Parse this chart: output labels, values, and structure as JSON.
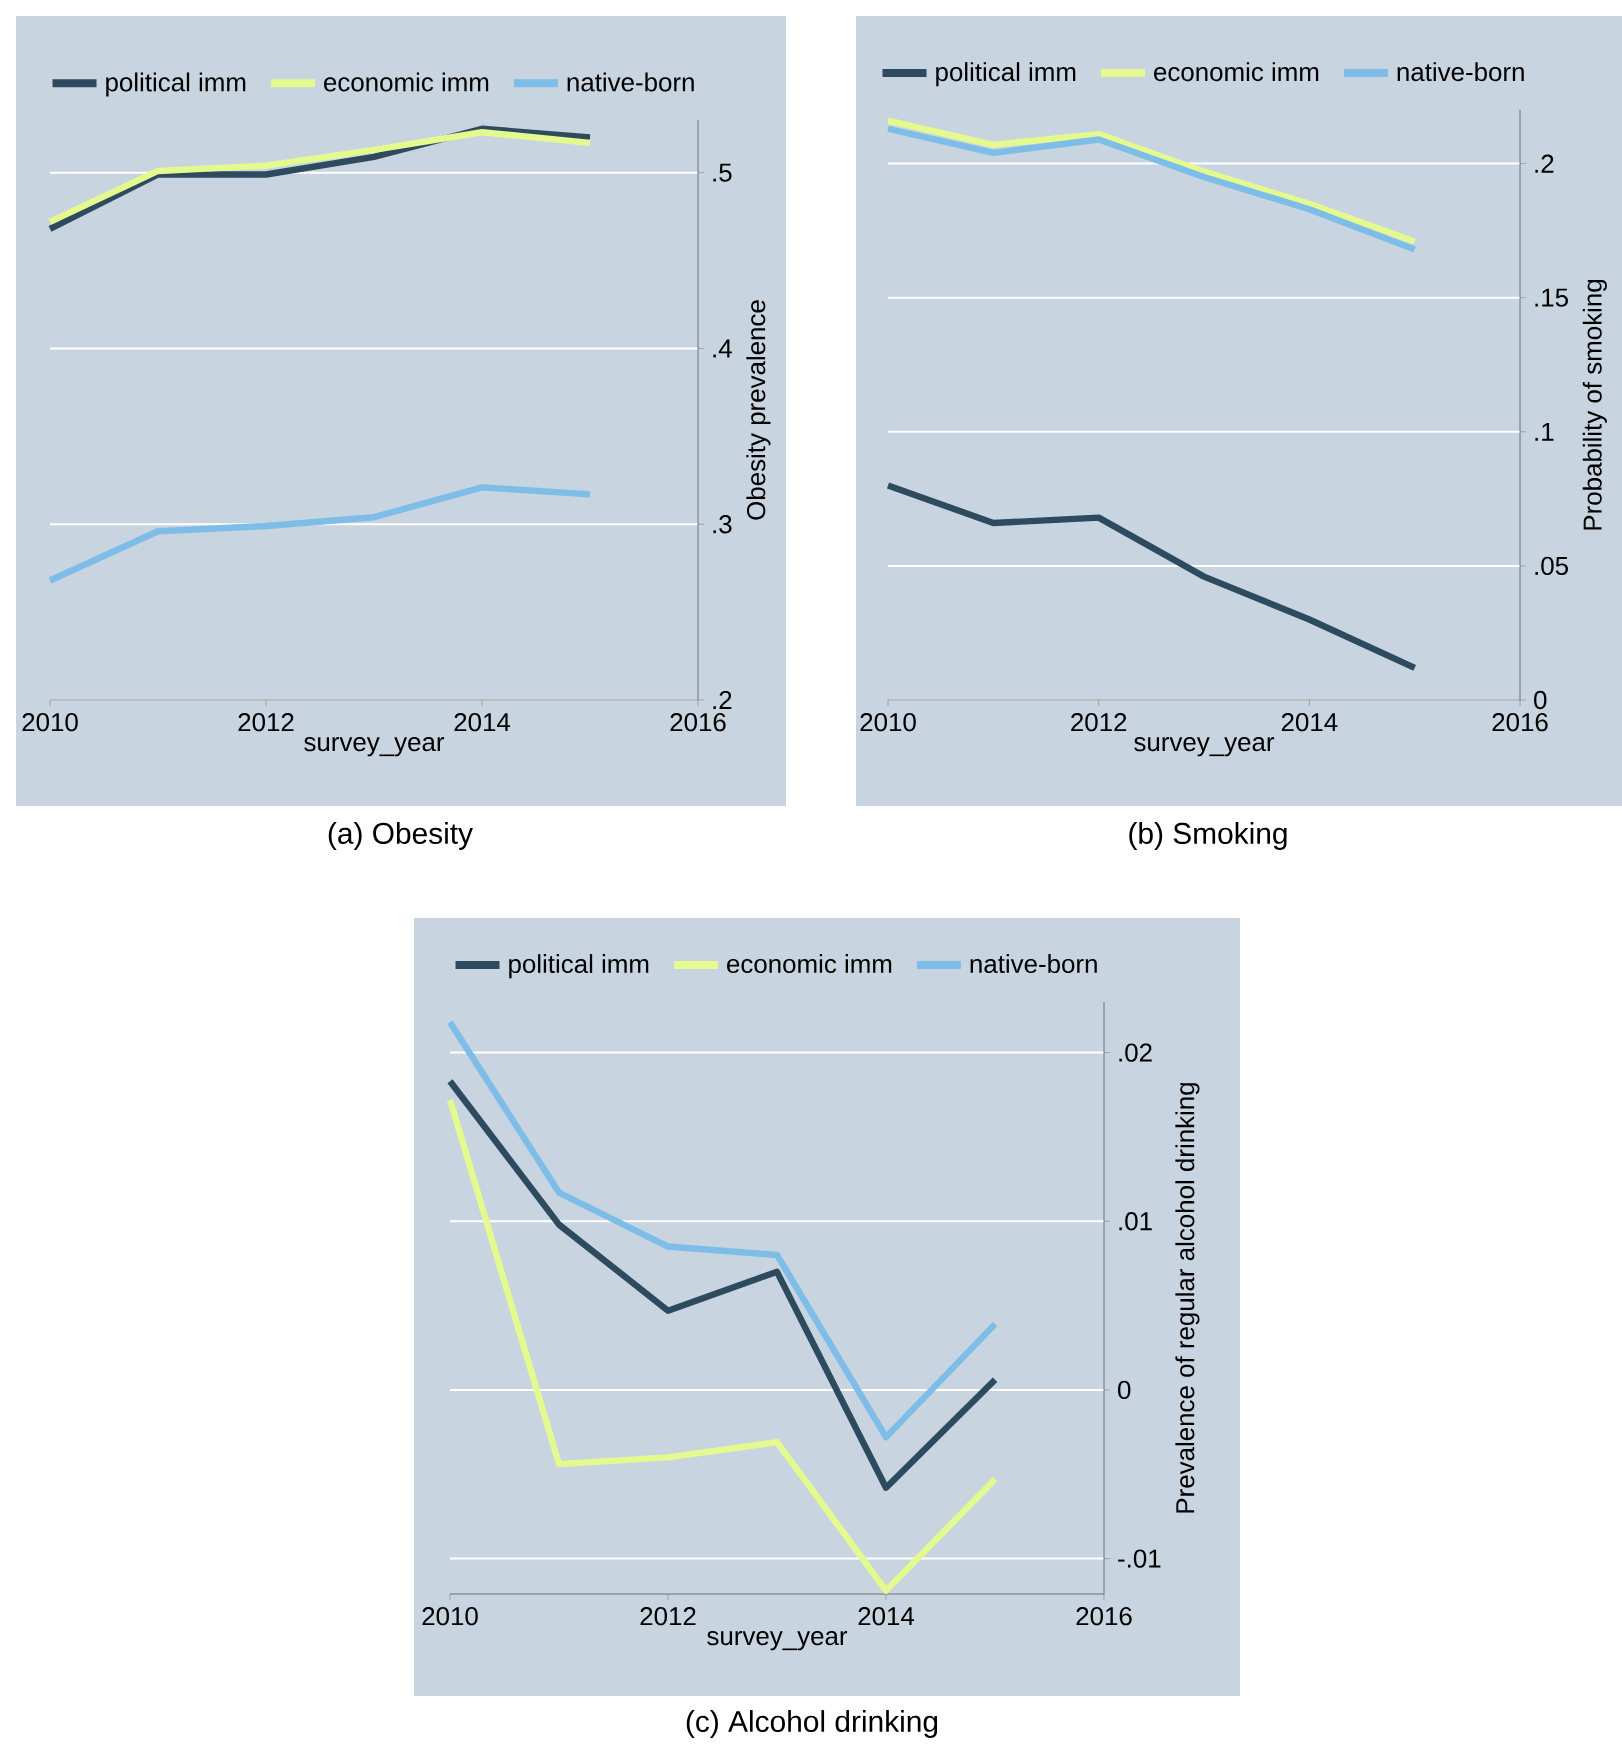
{
  "chart_data": [
    {
      "type": "line",
      "title": "(a) Obesity",
      "xlabel": "survey_year",
      "ylabel": "Obesity prevalence",
      "x": [
        2010,
        2011,
        2012,
        2013,
        2014,
        2015
      ],
      "xlim": [
        2010,
        2016
      ],
      "xticks": [
        2010,
        2012,
        2014,
        2016
      ],
      "ylim": [
        0.2,
        0.53
      ],
      "yticks": [
        {
          "value": 0.2,
          "label": ".2"
        },
        {
          "value": 0.3,
          "label": ".3"
        },
        {
          "value": 0.4,
          "label": ".4"
        },
        {
          "value": 0.5,
          "label": ".5"
        }
      ],
      "grid": "y",
      "legend": "top",
      "marker": "none",
      "line_style": "solid",
      "series": [
        {
          "name": "political imm",
          "color": "#2e4a5f",
          "values": [
            0.468,
            0.499,
            0.499,
            0.509,
            0.525,
            0.52
          ]
        },
        {
          "name": "economic imm",
          "color": "#e4fa8e",
          "values": [
            0.472,
            0.501,
            0.504,
            0.513,
            0.523,
            0.517
          ]
        },
        {
          "name": "native-born",
          "color": "#7dbde8",
          "values": [
            0.268,
            0.296,
            0.299,
            0.304,
            0.321,
            0.317
          ]
        }
      ]
    },
    {
      "type": "line",
      "title": "(b) Smoking",
      "xlabel": "survey_year",
      "ylabel": "Probability of smoking",
      "x": [
        2010,
        2011,
        2012,
        2013,
        2014,
        2015
      ],
      "xlim": [
        2010,
        2016
      ],
      "xticks": [
        2010,
        2012,
        2014,
        2016
      ],
      "ylim": [
        0,
        0.22
      ],
      "yticks": [
        0,
        {
          "value": 0.05,
          "label": ".05"
        },
        {
          "value": 0.1,
          "label": ".1"
        },
        {
          "value": 0.15,
          "label": ".15"
        },
        {
          "value": 0.2,
          "label": ".2"
        }
      ],
      "grid": "y",
      "legend": "top",
      "marker": "none",
      "line_style": "solid",
      "series": [
        {
          "name": "political imm",
          "color": "#2e4a5f",
          "values": [
            0.08,
            0.066,
            0.068,
            0.046,
            0.03,
            0.012
          ]
        },
        {
          "name": "economic imm",
          "color": "#e4fa8e",
          "values": [
            0.216,
            0.207,
            0.211,
            0.197,
            0.185,
            0.171
          ]
        },
        {
          "name": "native-born",
          "color": "#7dbde8",
          "values": [
            0.213,
            0.204,
            0.209,
            0.195,
            0.183,
            0.168
          ]
        }
      ]
    },
    {
      "type": "line",
      "title": "(c) Alcohol drinking",
      "xlabel": "survey_year",
      "ylabel": "Prevalence of regular alcohol drinking",
      "x": [
        2010,
        2011,
        2012,
        2013,
        2014,
        2015
      ],
      "xlim": [
        2010,
        2016
      ],
      "xticks": [
        2010,
        2012,
        2014,
        2016
      ],
      "ylim": [
        -0.0121,
        0.023
      ],
      "yticks": [
        {
          "value": -0.01,
          "label": "-.01"
        },
        0,
        {
          "value": 0.01,
          "label": ".01"
        },
        {
          "value": 0.02,
          "label": ".02"
        }
      ],
      "grid": "y",
      "legend": "top",
      "marker": "none",
      "line_style": "solid",
      "series": [
        {
          "name": "political imm",
          "color": "#2e4a5f",
          "values": [
            0.0183,
            0.0098,
            0.0047,
            0.007,
            -0.0058,
            0.0006
          ]
        },
        {
          "name": "economic imm",
          "color": "#e4fa8e",
          "values": [
            0.0172,
            -0.0044,
            -0.004,
            -0.0031,
            -0.0119,
            -0.0053
          ]
        },
        {
          "name": "native-born",
          "color": "#7dbde8",
          "values": [
            0.0218,
            0.0117,
            0.0085,
            0.008,
            -0.0028,
            0.0039
          ]
        }
      ]
    }
  ]
}
